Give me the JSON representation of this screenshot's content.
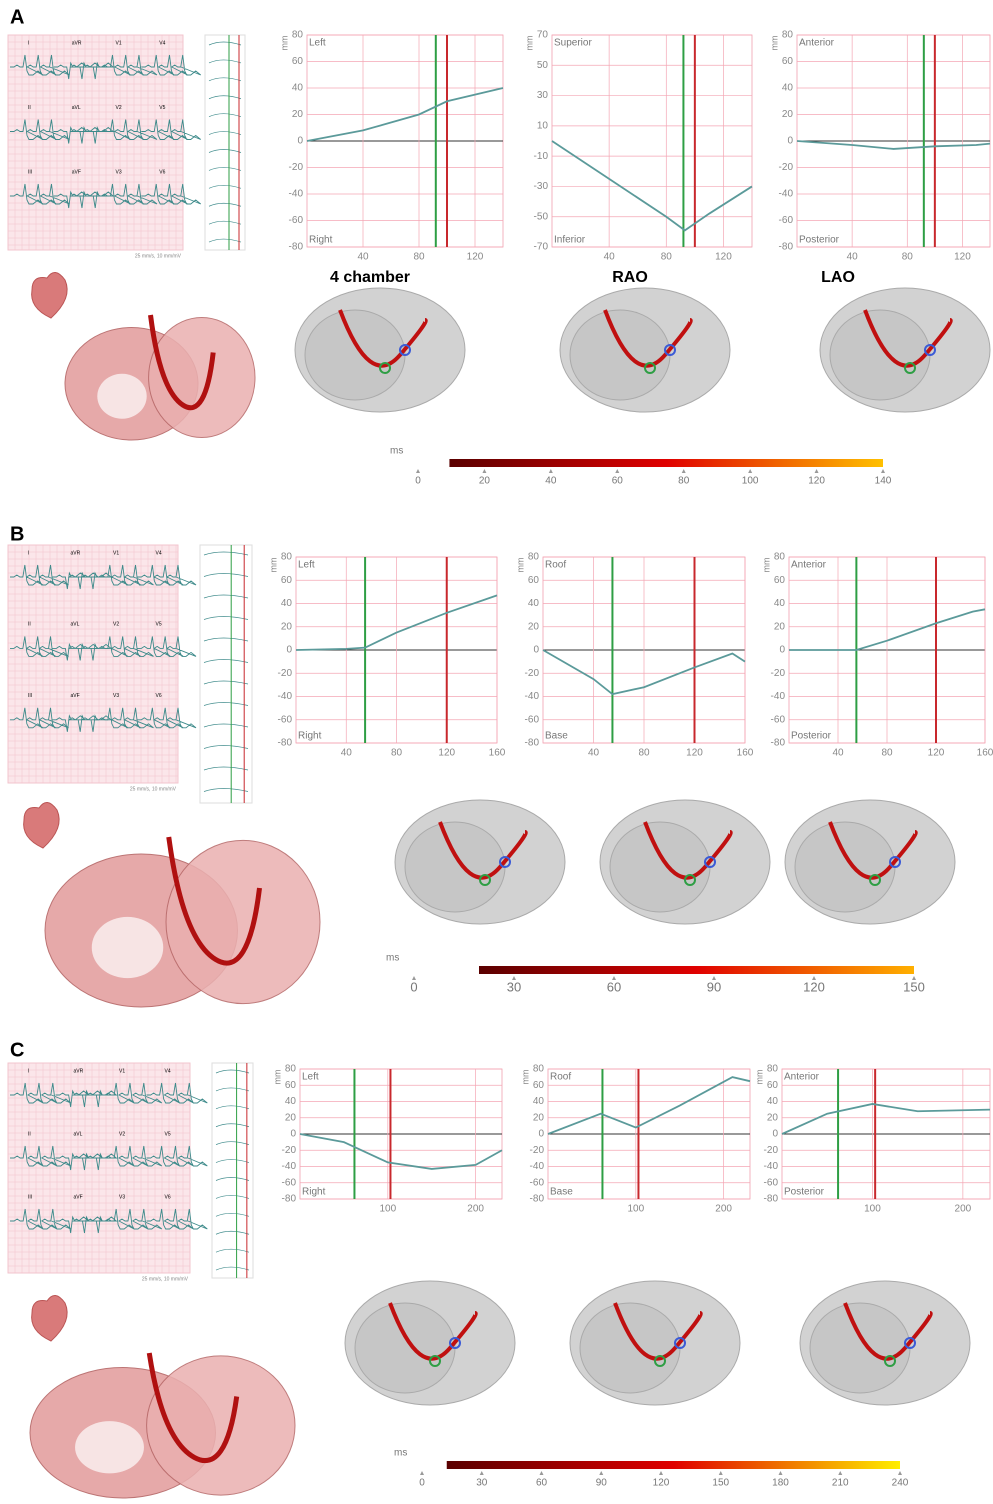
{
  "panels": [
    {
      "label": "A",
      "ecg": {
        "leads": [
          "I",
          "aVR",
          "V1",
          "V4",
          "II",
          "aVL",
          "V2",
          "V5",
          "III",
          "aVF",
          "V3",
          "V6"
        ],
        "speed": "25 mm/s, 10 mm/mV"
      },
      "views": [
        "4 chamber",
        "RAO",
        "LAO"
      ],
      "charts": [
        {
          "type": "line",
          "y_label": "mm",
          "top_label": "Left",
          "bottom_label": "Right",
          "xlim": [
            0,
            140
          ],
          "xticks": [
            40,
            80,
            120
          ],
          "ylim": [
            -80,
            80
          ],
          "yticks": [
            -80,
            -60,
            -40,
            -20,
            0,
            20,
            40,
            60,
            80
          ],
          "x": [
            0,
            40,
            80,
            100,
            140
          ],
          "series": [
            {
              "color": "#5b9a9a",
              "values": [
                0,
                8,
                20,
                30,
                40
              ]
            }
          ],
          "markers": [
            {
              "x": 92,
              "color": "#2e9e44"
            },
            {
              "x": 100,
              "color": "#c8282d"
            }
          ]
        },
        {
          "type": "line",
          "y_label": "mm",
          "top_label": "Superior",
          "bottom_label": "Inferior",
          "xlim": [
            0,
            140
          ],
          "xticks": [
            40,
            80,
            120
          ],
          "ylim": [
            -70,
            70
          ],
          "yticks": [
            -70,
            -50,
            -30,
            -10,
            10,
            30,
            50,
            70
          ],
          "x": [
            0,
            40,
            80,
            93,
            110,
            140
          ],
          "series": [
            {
              "color": "#5b9a9a",
              "values": [
                0,
                -25,
                -50,
                -59,
                -48,
                -30
              ]
            }
          ],
          "markers": [
            {
              "x": 92,
              "color": "#2e9e44"
            },
            {
              "x": 100,
              "color": "#c8282d"
            }
          ]
        },
        {
          "type": "line",
          "y_label": "mm",
          "top_label": "Anterior",
          "bottom_label": "Posterior",
          "xlim": [
            0,
            140
          ],
          "xticks": [
            40,
            80,
            120
          ],
          "ylim": [
            -80,
            80
          ],
          "yticks": [
            -80,
            -60,
            -40,
            -20,
            0,
            20,
            40,
            60,
            80
          ],
          "x": [
            0,
            40,
            70,
            100,
            130,
            140
          ],
          "series": [
            {
              "color": "#5b9a9a",
              "values": [
                0,
                -3,
                -6,
                -4,
                -3,
                -2
              ]
            }
          ],
          "markers": [
            {
              "x": 92,
              "color": "#2e9e44"
            },
            {
              "x": 100,
              "color": "#c8282d"
            }
          ]
        }
      ],
      "colorbar": {
        "label": "ms",
        "lim": [
          0,
          140
        ],
        "ticks": [
          0,
          20,
          40,
          60,
          80,
          100,
          120,
          140
        ],
        "colors": [
          "#5a0000",
          "#e00000",
          "#ffc000"
        ]
      }
    },
    {
      "label": "B",
      "ecg": {
        "leads": [
          "I",
          "aVR",
          "V1",
          "V4",
          "II",
          "aVL",
          "V2",
          "V5",
          "III",
          "aVF",
          "V3",
          "V6"
        ],
        "speed": "25 mm/s, 10 mm/mV"
      },
      "charts": [
        {
          "type": "line",
          "y_label": "mm",
          "top_label": "Left",
          "bottom_label": "Right",
          "xlim": [
            0,
            160
          ],
          "xticks": [
            40,
            80,
            120,
            160
          ],
          "ylim": [
            -80,
            80
          ],
          "yticks": [
            -80,
            -60,
            -40,
            -20,
            0,
            20,
            40,
            60,
            80
          ],
          "x": [
            0,
            40,
            55,
            80,
            120,
            160
          ],
          "series": [
            {
              "color": "#5b9a9a",
              "values": [
                0,
                1,
                2,
                15,
                32,
                47
              ]
            }
          ],
          "markers": [
            {
              "x": 55,
              "color": "#2e9e44"
            },
            {
              "x": 120,
              "color": "#c8282d"
            }
          ]
        },
        {
          "type": "line",
          "y_label": "mm",
          "top_label": "Roof",
          "bottom_label": "Base",
          "xlim": [
            0,
            160
          ],
          "xticks": [
            40,
            80,
            120,
            160
          ],
          "ylim": [
            -80,
            80
          ],
          "yticks": [
            -80,
            -60,
            -40,
            -20,
            0,
            20,
            40,
            60,
            80
          ],
          "x": [
            0,
            40,
            55,
            80,
            120,
            150,
            160
          ],
          "series": [
            {
              "color": "#5b9a9a",
              "values": [
                0,
                -25,
                -38,
                -32,
                -15,
                -3,
                -10
              ]
            }
          ],
          "markers": [
            {
              "x": 55,
              "color": "#2e9e44"
            },
            {
              "x": 120,
              "color": "#c8282d"
            }
          ]
        },
        {
          "type": "line",
          "y_label": "mm",
          "top_label": "Anterior",
          "bottom_label": "Posterior",
          "xlim": [
            0,
            160
          ],
          "xticks": [
            40,
            80,
            120,
            160
          ],
          "ylim": [
            -80,
            80
          ],
          "yticks": [
            -80,
            -60,
            -40,
            -20,
            0,
            20,
            40,
            60,
            80
          ],
          "x": [
            0,
            55,
            80,
            120,
            150,
            160
          ],
          "series": [
            {
              "color": "#5b9a9a",
              "values": [
                0,
                0,
                8,
                23,
                33,
                35
              ]
            }
          ],
          "markers": [
            {
              "x": 55,
              "color": "#2e9e44"
            },
            {
              "x": 120,
              "color": "#c8282d"
            }
          ]
        }
      ],
      "colorbar": {
        "label": "ms",
        "lim": [
          0,
          150
        ],
        "ticks": [
          0,
          30,
          60,
          90,
          120,
          150
        ],
        "colors": [
          "#5a0000",
          "#e00000",
          "#ffb000"
        ]
      }
    },
    {
      "label": "C",
      "ecg": {
        "leads": [
          "I",
          "aVR",
          "V1",
          "V4",
          "II",
          "aVL",
          "V2",
          "V5",
          "III",
          "aVF",
          "V3",
          "V6"
        ],
        "speed": "25 mm/s, 10 mm/mV"
      },
      "charts": [
        {
          "type": "line",
          "y_label": "mm",
          "top_label": "Left",
          "bottom_label": "Right",
          "xlim": [
            0,
            230
          ],
          "xticks": [
            100,
            200
          ],
          "ylim": [
            -80,
            80
          ],
          "yticks": [
            -80,
            -60,
            -40,
            -20,
            0,
            20,
            40,
            60,
            80
          ],
          "x": [
            0,
            50,
            100,
            150,
            200,
            230
          ],
          "series": [
            {
              "color": "#5b9a9a",
              "values": [
                0,
                -10,
                -35,
                -43,
                -38,
                -20
              ]
            }
          ],
          "markers": [
            {
              "x": 62,
              "color": "#2e9e44"
            },
            {
              "x": 103,
              "color": "#c8282d"
            }
          ]
        },
        {
          "type": "line",
          "y_label": "mm",
          "top_label": "Roof",
          "bottom_label": "Base",
          "xlim": [
            0,
            230
          ],
          "xticks": [
            100,
            200
          ],
          "ylim": [
            -80,
            80
          ],
          "yticks": [
            -80,
            -60,
            -40,
            -20,
            0,
            20,
            40,
            60,
            80
          ],
          "x": [
            0,
            60,
            100,
            150,
            210,
            230
          ],
          "series": [
            {
              "color": "#5b9a9a",
              "values": [
                0,
                25,
                8,
                35,
                70,
                65
              ]
            }
          ],
          "markers": [
            {
              "x": 62,
              "color": "#2e9e44"
            },
            {
              "x": 103,
              "color": "#c8282d"
            }
          ]
        },
        {
          "type": "line",
          "y_label": "mm",
          "top_label": "Anterior",
          "bottom_label": "Posterior",
          "xlim": [
            0,
            230
          ],
          "xticks": [
            100,
            200
          ],
          "ylim": [
            -80,
            80
          ],
          "yticks": [
            -80,
            -60,
            -40,
            -20,
            0,
            20,
            40,
            60,
            80
          ],
          "x": [
            0,
            50,
            100,
            150,
            230
          ],
          "series": [
            {
              "color": "#5b9a9a",
              "values": [
                0,
                25,
                37,
                28,
                30
              ]
            }
          ],
          "markers": [
            {
              "x": 62,
              "color": "#2e9e44"
            },
            {
              "x": 103,
              "color": "#c8282d"
            }
          ]
        }
      ],
      "colorbar": {
        "label": "ms",
        "lim": [
          0,
          240
        ],
        "ticks": [
          0,
          30,
          60,
          90,
          120,
          150,
          180,
          210,
          240
        ],
        "colors": [
          "#5a0000",
          "#e00000",
          "#ffee00"
        ]
      }
    }
  ]
}
